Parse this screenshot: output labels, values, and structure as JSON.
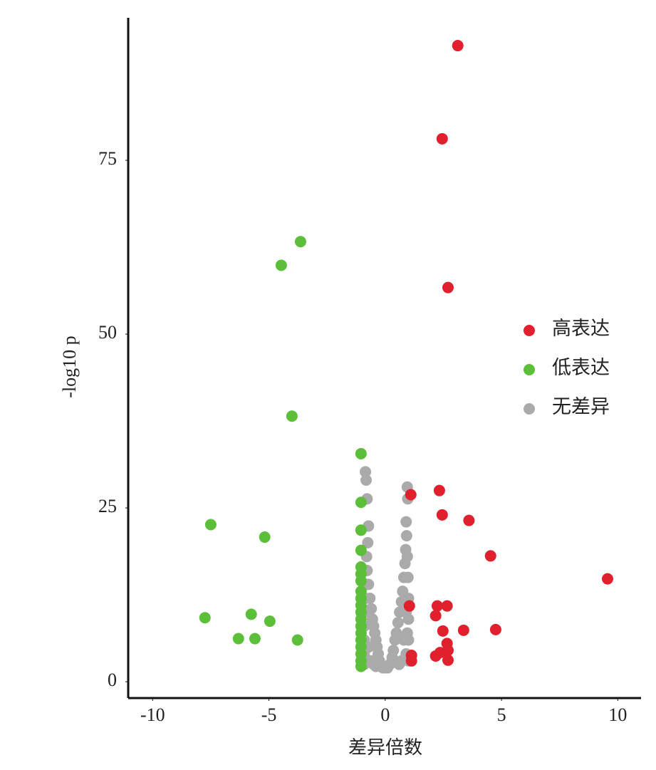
{
  "chart_data": {
    "type": "scatter",
    "x_label": "差异倍数",
    "y_label": "-log10 p",
    "xlim": [
      -11.05,
      11
    ],
    "ylim": [
      -2.35,
      95.5
    ],
    "xticks": [
      -10,
      -5,
      0,
      5,
      10
    ],
    "yticks": [
      0,
      25,
      50,
      75
    ],
    "legend": "right",
    "series": [
      {
        "name": "高表达",
        "color": "#e0202c",
        "x": [
          3.12,
          2.45,
          2.7,
          2.33,
          1.1,
          2.45,
          3.6,
          4.53,
          9.56,
          1.04,
          2.24,
          2.66,
          2.17,
          3.37,
          4.75,
          2.48,
          2.66,
          2.7,
          2.7,
          2.17,
          2.36,
          1.13,
          1.13
        ],
        "values": [
          91.5,
          78.1,
          56.7,
          27.5,
          26.9,
          24.0,
          23.2,
          18.1,
          14.8,
          10.9,
          10.9,
          10.9,
          9.5,
          7.4,
          7.5,
          7.3,
          5.5,
          4.5,
          3.1,
          3.7,
          4.2,
          3.8,
          3.0
        ]
      },
      {
        "name": "低表达",
        "color": "#5cbf3a",
        "x": [
          -3.64,
          -4.47,
          -4.01,
          -7.5,
          -5.18,
          -7.75,
          -5.76,
          -4.96,
          -6.31,
          -5.6,
          -3.77,
          -1.04,
          -1.04,
          -1.04,
          -1.04,
          -1.04,
          -1.04,
          -1.04,
          -1.04,
          -1.04,
          -1.04,
          -1.04,
          -1.04,
          -1.04,
          -1.04,
          -1.04,
          -1.04,
          -1.04,
          -1.04,
          -1.04
        ],
        "values": [
          63.3,
          59.9,
          38.2,
          22.6,
          20.8,
          9.2,
          9.7,
          8.7,
          6.2,
          6.2,
          6.0,
          32.8,
          25.8,
          21.8,
          18.9,
          16.5,
          15.5,
          14.5,
          13,
          12,
          11,
          10,
          9,
          8,
          7,
          6,
          5,
          4,
          3,
          2.2
        ]
      },
      {
        "name": "无差异",
        "color": "#aaaaaa",
        "x": [
          -0.85,
          -0.82,
          -0.78,
          -0.72,
          -0.75,
          -0.8,
          -0.78,
          -0.72,
          -0.66,
          -0.6,
          -0.55,
          -0.5,
          -0.45,
          -0.4,
          -0.35,
          -0.3,
          -0.25,
          -0.2,
          -0.8,
          -0.85,
          -0.9,
          -0.9,
          -0.9,
          -0.9,
          -0.9,
          -0.7,
          -0.6,
          -0.5,
          -0.4,
          -0.1,
          0,
          0.1,
          0.2,
          0.95,
          0.97,
          0.9,
          0.92,
          0.88,
          0.85,
          0.8,
          0.75,
          0.7,
          0.62,
          0.55,
          0.48,
          0.42,
          0.35,
          0.3,
          0.25,
          0.95,
          0.98,
          1.0,
          1.0,
          1.0,
          1.0,
          0.9,
          0.8,
          0.7,
          0.6,
          0.9,
          0.95
        ],
        "values": [
          30.2,
          29,
          26.3,
          22.4,
          20,
          18,
          16,
          14,
          12,
          10.5,
          9,
          8,
          7,
          6,
          5,
          4,
          3,
          2.2,
          14,
          12,
          10,
          8,
          6,
          4,
          2.5,
          5,
          3,
          2.5,
          2.2,
          2,
          2,
          2,
          2.5,
          28,
          26.3,
          23,
          21,
          19,
          17,
          15,
          13,
          11.5,
          10,
          8.5,
          7,
          6,
          4.5,
          3.5,
          2.7,
          18,
          15,
          12,
          9,
          6,
          3,
          4,
          6,
          3,
          2.5,
          10,
          7
        ]
      }
    ]
  }
}
